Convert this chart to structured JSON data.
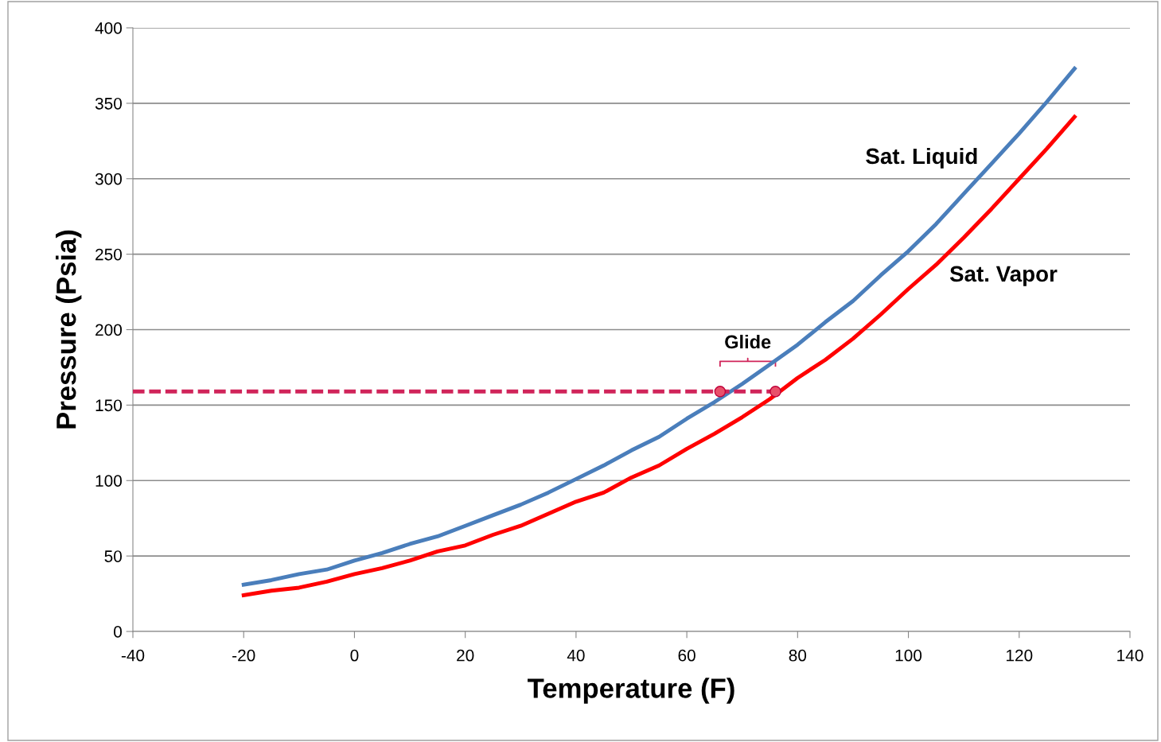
{
  "chart_data": {
    "type": "line",
    "xlabel": "Temperature (F)",
    "ylabel": "Pressure (Psia)",
    "xlim": [
      -40,
      140
    ],
    "xticks": [
      -40,
      -20,
      0,
      20,
      40,
      60,
      80,
      100,
      120,
      140
    ],
    "ylim": [
      0,
      400
    ],
    "yticks": [
      0,
      50,
      100,
      150,
      200,
      250,
      300,
      350,
      400
    ],
    "grid": "y",
    "legend": false,
    "marker": "none",
    "x": [
      -20,
      -15,
      -10,
      -5,
      0,
      5,
      10,
      15,
      20,
      25,
      30,
      35,
      40,
      45,
      50,
      55,
      60,
      65,
      70,
      75,
      80,
      85,
      90,
      95,
      100,
      105,
      110,
      115,
      120,
      125,
      130
    ],
    "series": [
      {
        "name": "Sat. Liquid",
        "color": "#4a7ebb",
        "values": [
          31,
          34,
          38,
          41,
          47,
          52,
          58,
          63,
          70,
          77,
          84,
          92,
          101,
          110,
          120,
          129,
          141,
          152,
          164,
          177,
          190,
          205,
          219,
          236,
          252,
          270,
          290,
          310,
          330,
          351,
          373
        ]
      },
      {
        "name": "Sat. Vapor",
        "color": "#ff0000",
        "values": [
          24,
          27,
          29,
          33,
          38,
          42,
          47,
          53,
          57,
          64,
          70,
          78,
          86,
          92,
          102,
          110,
          121,
          131,
          142,
          154,
          168,
          180,
          194,
          210,
          227,
          243,
          261,
          280,
          300,
          320,
          341
        ]
      },
      {
        "type": "line",
        "color": "#d0245a",
        "line_style": "dashed",
        "x": [
          -40,
          76
        ],
        "values": [
          159,
          159
        ]
      },
      {
        "type": "scatter",
        "color": "#e8506a",
        "marker": "circle",
        "x": [
          66,
          76
        ],
        "values": [
          159,
          159
        ]
      }
    ],
    "annotations": [
      "Glide"
    ]
  }
}
